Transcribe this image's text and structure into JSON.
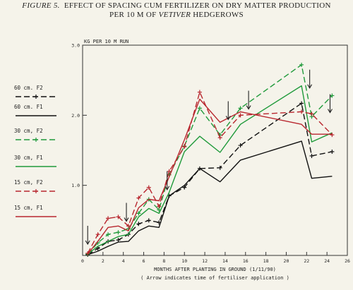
{
  "title": {
    "figure": "FIGURE 5.",
    "line1": "EFFECT OF SPACING CUM FERTILIZER  ON DRY MATTER PRODUCTION",
    "line2_pre": "PER 10 M OF ",
    "line2_italic": "VETIVER",
    "line2_post": " HEDGEROWS"
  },
  "chart_data": {
    "type": "line",
    "ylabel": "KG PER 10 M RUN",
    "xlabel": "MONTHS AFTER PLANTING IN GROUND (1/11/90)",
    "note": "( Arrow indicates time of fertiliser application )",
    "xlim": [
      0,
      26
    ],
    "ylim": [
      0,
      3.0
    ],
    "x_ticks": [
      "0",
      "2",
      "4",
      "6",
      "8",
      "10",
      "12",
      "14",
      "16",
      "18",
      "20",
      "22",
      "24",
      "26"
    ],
    "y_ticks": [
      "1.0",
      "2.0",
      "3.0"
    ],
    "y_tick_values": [
      1.0,
      2.0,
      3.0
    ],
    "grid": false,
    "legend_position": "left",
    "fertiliser_arrows_months": [
      0.5,
      4.3,
      8.3,
      14.3,
      16.3,
      22.3,
      24.3
    ],
    "series": [
      {
        "name": "60 cm. F2",
        "color": "#111111",
        "dash": "8,4",
        "marker": "plus",
        "x": [
          0.5,
          1.5,
          2.5,
          3.5,
          4.5,
          5.5,
          6.5,
          7.5,
          8.5,
          10,
          11.5,
          13.5,
          15.5,
          21.5,
          22.5,
          24.5
        ],
        "y": [
          0.01,
          0.1,
          0.2,
          0.22,
          0.3,
          0.45,
          0.5,
          0.47,
          0.85,
          0.97,
          1.24,
          1.25,
          1.57,
          2.17,
          1.42,
          1.48
        ]
      },
      {
        "name": "60 cm. F1",
        "color": "#111111",
        "dash": "",
        "marker": "none",
        "x": [
          0.5,
          1.5,
          2.5,
          3.5,
          4.5,
          5.5,
          6.5,
          7.5,
          8.5,
          10,
          11.5,
          13.5,
          15.5,
          21.5,
          22.5,
          24.5
        ],
        "y": [
          0.01,
          0.06,
          0.13,
          0.19,
          0.2,
          0.35,
          0.42,
          0.4,
          0.85,
          1.0,
          1.24,
          1.05,
          1.36,
          1.63,
          1.1,
          1.13
        ]
      },
      {
        "name": "30 cm, F2",
        "color": "#1f9a3a",
        "dash": "8,4",
        "marker": "plus",
        "x": [
          0.5,
          1.5,
          2.5,
          3.5,
          4.5,
          5.5,
          6.5,
          7.5,
          8.5,
          10,
          11.5,
          13.5,
          15.5,
          21.5,
          22.5,
          24.5
        ],
        "y": [
          0.02,
          0.18,
          0.3,
          0.33,
          0.38,
          0.6,
          0.8,
          0.65,
          1.15,
          1.56,
          2.1,
          1.72,
          2.1,
          2.72,
          1.98,
          2.28
        ]
      },
      {
        "name": "30 cm, F1",
        "color": "#1f9a3a",
        "dash": "",
        "marker": "none",
        "x": [
          0.5,
          1.5,
          2.5,
          3.5,
          4.5,
          5.5,
          6.5,
          7.5,
          8.5,
          10,
          11.5,
          13.5,
          15.5,
          21.5,
          22.5,
          24.5
        ],
        "y": [
          0.02,
          0.13,
          0.2,
          0.27,
          0.3,
          0.55,
          0.67,
          0.6,
          0.9,
          1.48,
          1.7,
          1.47,
          1.87,
          2.42,
          1.62,
          1.75
        ]
      },
      {
        "name": "15 cm, F2",
        "color": "#b8262e",
        "dash": "8,4",
        "marker": "plus",
        "x": [
          0.5,
          1.5,
          2.5,
          3.5,
          4.5,
          5.5,
          6.5,
          7.5,
          8.5,
          10,
          11.5,
          13.5,
          15.5,
          21.5,
          22.5,
          24.5
        ],
        "y": [
          0.03,
          0.3,
          0.53,
          0.55,
          0.42,
          0.82,
          0.97,
          0.7,
          1.2,
          1.55,
          2.33,
          1.68,
          2.0,
          2.05,
          2.02,
          1.72
        ]
      },
      {
        "name": "15 cm, F1",
        "color": "#b8262e",
        "dash": "",
        "marker": "none",
        "x": [
          0.5,
          1.5,
          2.5,
          3.5,
          4.5,
          5.5,
          6.5,
          7.5,
          8.5,
          10,
          11.5,
          13.5,
          15.5,
          21.5,
          22.5,
          24.5
        ],
        "y": [
          0.02,
          0.2,
          0.4,
          0.42,
          0.35,
          0.68,
          0.8,
          0.78,
          1.12,
          1.65,
          2.23,
          1.9,
          2.05,
          1.87,
          1.73,
          1.73
        ]
      }
    ]
  }
}
